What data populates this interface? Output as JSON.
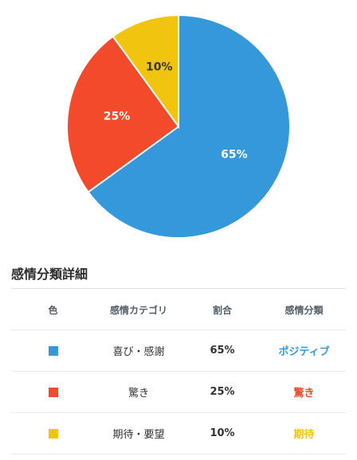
{
  "chart_data": {
    "type": "pie",
    "categories": [
      "喜び・感謝",
      "驚き",
      "期待・要望"
    ],
    "values": [
      65,
      25,
      10
    ],
    "labels": [
      "65%",
      "25%",
      "10%"
    ],
    "colors": [
      "#3498db",
      "#f24a2a",
      "#f1c40f"
    ],
    "label_colors": [
      "#ffffff",
      "#ffffff",
      "#333333"
    ]
  },
  "details": {
    "title": "感情分類詳細",
    "headers": {
      "color": "色",
      "category": "感情カテゴリ",
      "ratio": "割合",
      "classification": "感情分類"
    },
    "rows": [
      {
        "color": "#3498db",
        "category": "喜び・感謝",
        "ratio": "65%",
        "classification": "ポジティブ",
        "class_color": "#3498db"
      },
      {
        "color": "#f24a2a",
        "category": "驚き",
        "ratio": "25%",
        "classification": "驚き",
        "class_color": "#f24a2a"
      },
      {
        "color": "#f1c40f",
        "category": "期待・要望",
        "ratio": "10%",
        "classification": "期待",
        "class_color": "#f1c40f"
      }
    ]
  }
}
